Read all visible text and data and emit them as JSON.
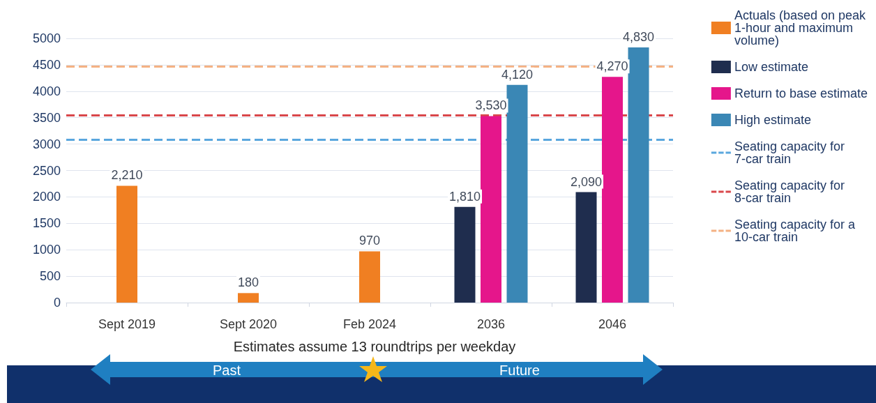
{
  "chart_data": {
    "type": "bar",
    "categories": [
      "Sept 2019",
      "Sept 2020",
      "Feb 2024",
      "2036",
      "2046"
    ],
    "series": [
      {
        "name": "Actuals (based on peak 1-hour and maximum volume)",
        "color": "#f07f22",
        "values": [
          2210,
          180,
          970,
          null,
          null
        ],
        "value_labels": [
          "2,210",
          "180",
          "970",
          null,
          null
        ]
      },
      {
        "name": "Low estimate",
        "color": "#1f2d4e",
        "values": [
          null,
          null,
          null,
          1810,
          2090
        ],
        "value_labels": [
          null,
          null,
          null,
          "1,810",
          "2,090"
        ]
      },
      {
        "name": "Return to base estimate",
        "color": "#e5168b",
        "values": [
          null,
          null,
          null,
          3530,
          4270
        ],
        "value_labels": [
          null,
          null,
          null,
          "3,530",
          "4,270"
        ]
      },
      {
        "name": "High estimate",
        "color": "#3a87b5",
        "values": [
          null,
          null,
          null,
          4120,
          4830
        ],
        "value_labels": [
          null,
          null,
          null,
          "4,120",
          "4,830"
        ]
      }
    ],
    "ylim": [
      0,
      5000
    ],
    "yticks": [
      0,
      500,
      1000,
      1500,
      2000,
      2500,
      3000,
      3500,
      4000,
      4500,
      5000
    ],
    "grid": "y",
    "legend": "right",
    "ref_lines": [
      {
        "axis": "y",
        "value": 3090,
        "label": "Seating capacity for 7-car train",
        "color": "#5aa7de",
        "line_style": "dashed"
      },
      {
        "axis": "y",
        "value": 3550,
        "label": "Seating capacity for 8-car train",
        "color": "#d9474b",
        "line_style": "dashed"
      },
      {
        "axis": "y",
        "value": 4470,
        "label": "Seating capacity for a 10-car train",
        "color": "#f4b183",
        "line_style": "dashed"
      }
    ],
    "annotations": [
      "Estimates assume 13 roundtrips per weekday",
      "Past",
      "Future"
    ]
  }
}
